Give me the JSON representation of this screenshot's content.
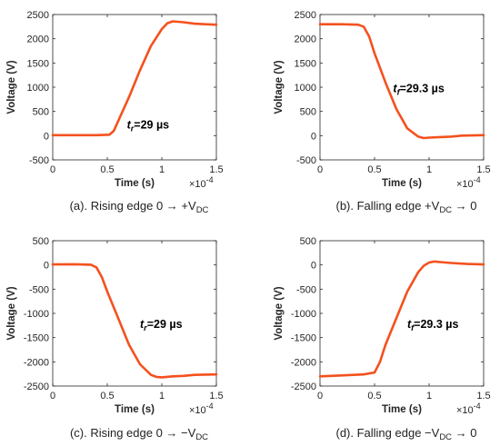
{
  "chart_data": [
    {
      "type": "line",
      "xlabel": "Time (s)",
      "ylabel": "Voltage (V)",
      "x_exponent_label": "×10",
      "x_exponent_power": "-4",
      "xlim": [
        0,
        1.5
      ],
      "ylim": [
        -500,
        2500
      ],
      "xticks": [
        0,
        0.5,
        1,
        1.5
      ],
      "xtick_labels": [
        "0",
        "0.5",
        "1",
        "1.5"
      ],
      "yticks": [
        -500,
        0,
        500,
        1000,
        1500,
        2000,
        2500
      ],
      "ytick_labels": [
        "-500",
        "0",
        "500",
        "1000",
        "1500",
        "2000",
        "2500"
      ],
      "grid": false,
      "series": [
        {
          "color": "#f4511e",
          "x": [
            0,
            0.2,
            0.4,
            0.52,
            0.56,
            0.6,
            0.7,
            0.8,
            0.9,
            1.0,
            1.05,
            1.1,
            1.2,
            1.3,
            1.4,
            1.5
          ],
          "y": [
            10,
            10,
            10,
            20,
            100,
            300,
            800,
            1350,
            1850,
            2200,
            2320,
            2360,
            2340,
            2310,
            2300,
            2290
          ]
        }
      ],
      "annotation": {
        "symbol": "t",
        "subscript": "r",
        "text": "=29 µs",
        "x": 0.68,
        "y": 150
      },
      "caption": {
        "prefix": "(a). Rising edge 0 → +V",
        "subscript": "DC",
        "suffix": ""
      }
    },
    {
      "type": "line",
      "xlabel": "Time (s)",
      "ylabel": "Voltage (V)",
      "x_exponent_label": "×10",
      "x_exponent_power": "-4",
      "xlim": [
        0,
        1.5
      ],
      "ylim": [
        -500,
        2500
      ],
      "xticks": [
        0,
        0.5,
        1,
        1.5
      ],
      "xtick_labels": [
        "0",
        "0.5",
        "1",
        "1.5"
      ],
      "yticks": [
        -500,
        0,
        500,
        1000,
        1500,
        2000,
        2500
      ],
      "ytick_labels": [
        "-500",
        "0",
        "500",
        "1000",
        "1500",
        "2000",
        "2500"
      ],
      "grid": false,
      "series": [
        {
          "color": "#f4511e",
          "x": [
            0,
            0.2,
            0.35,
            0.4,
            0.45,
            0.5,
            0.6,
            0.7,
            0.8,
            0.9,
            0.95,
            1.0,
            1.1,
            1.2,
            1.3,
            1.5
          ],
          "y": [
            2300,
            2300,
            2290,
            2250,
            2050,
            1700,
            1100,
            550,
            150,
            -20,
            -50,
            -40,
            -30,
            -20,
            0,
            10
          ]
        }
      ],
      "annotation": {
        "symbol": "t",
        "subscript": "f",
        "text": "=29.3 µs",
        "x": 0.67,
        "y": 900
      },
      "caption": {
        "prefix": "(b). Falling edge +V",
        "subscript": "DC",
        "suffix": " → 0"
      }
    },
    {
      "type": "line",
      "xlabel": "Time (s)",
      "ylabel": "Voltage (V)",
      "x_exponent_label": "×10",
      "x_exponent_power": "-4",
      "xlim": [
        0,
        1.5
      ],
      "ylim": [
        -2500,
        500
      ],
      "xticks": [
        0,
        0.5,
        1,
        1.5
      ],
      "xtick_labels": [
        "0",
        "0.5",
        "1",
        "1.5"
      ],
      "yticks": [
        -2500,
        -2000,
        -1500,
        -1000,
        -500,
        0,
        500
      ],
      "ytick_labels": [
        "-2500",
        "-2000",
        "-1500",
        "-1000",
        "-500",
        "0",
        "500"
      ],
      "grid": false,
      "series": [
        {
          "color": "#f4511e",
          "x": [
            0,
            0.2,
            0.35,
            0.4,
            0.45,
            0.5,
            0.6,
            0.7,
            0.8,
            0.9,
            0.95,
            1.0,
            1.1,
            1.2,
            1.3,
            1.5
          ],
          "y": [
            10,
            15,
            5,
            -50,
            -250,
            -550,
            -1100,
            -1650,
            -2050,
            -2270,
            -2310,
            -2320,
            -2300,
            -2290,
            -2270,
            -2260
          ]
        }
      ],
      "annotation": {
        "symbol": "t",
        "subscript": "r",
        "text": "=29 µs",
        "x": 0.8,
        "y": -1300
      },
      "caption": {
        "prefix": "(c). Rising edge 0 → −V",
        "subscript": "DC",
        "suffix": ""
      }
    },
    {
      "type": "line",
      "xlabel": "Time (s)",
      "ylabel": "Voltage (V)",
      "x_exponent_label": "×10",
      "x_exponent_power": "-4",
      "xlim": [
        0,
        1.5
      ],
      "ylim": [
        -2500,
        500
      ],
      "xticks": [
        0,
        0.5,
        1,
        1.5
      ],
      "xtick_labels": [
        "0",
        "0.5",
        "1",
        "1.5"
      ],
      "yticks": [
        -2500,
        -2000,
        -1500,
        -1000,
        -500,
        0,
        500
      ],
      "ytick_labels": [
        "-2500",
        "-2000",
        "-1500",
        "-1000",
        "-500",
        "0",
        "500"
      ],
      "grid": false,
      "series": [
        {
          "color": "#f4511e",
          "x": [
            0,
            0.2,
            0.4,
            0.5,
            0.55,
            0.6,
            0.7,
            0.8,
            0.9,
            0.95,
            1.0,
            1.05,
            1.1,
            1.2,
            1.35,
            1.5
          ],
          "y": [
            -2300,
            -2280,
            -2260,
            -2220,
            -2000,
            -1650,
            -1100,
            -550,
            -150,
            -20,
            50,
            70,
            60,
            40,
            20,
            10
          ]
        }
      ],
      "annotation": {
        "symbol": "t",
        "subscript": "f",
        "text": "=29.3 µs",
        "x": 0.8,
        "y": -1300
      },
      "caption": {
        "prefix": "(d). Falling edge −V",
        "subscript": "DC",
        "suffix": " → 0"
      }
    }
  ]
}
